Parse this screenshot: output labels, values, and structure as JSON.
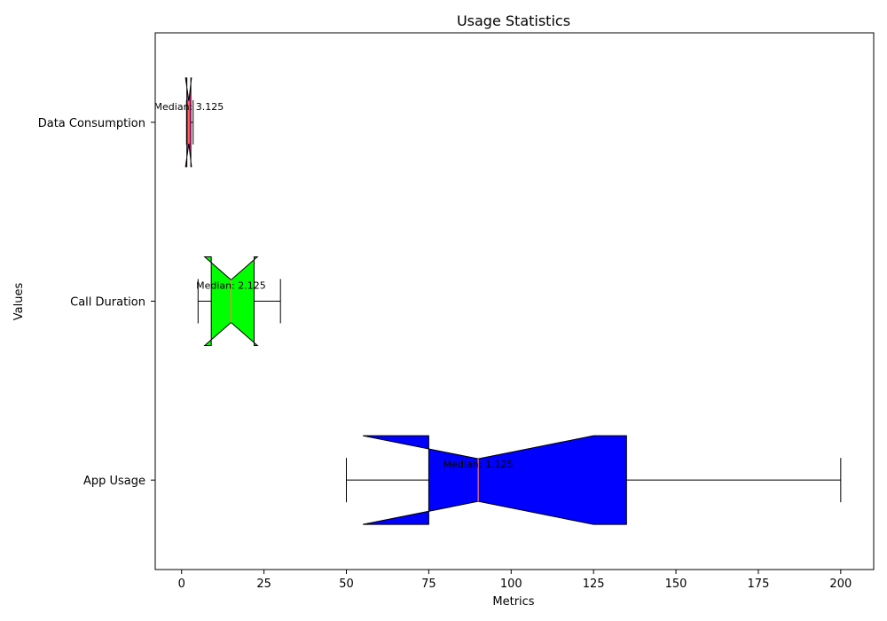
{
  "chart_data": {
    "type": "boxplot",
    "orientation": "horizontal",
    "notched": true,
    "title": "Usage Statistics",
    "xlabel": "Metrics",
    "ylabel": "Values",
    "xlim": [
      -8,
      210
    ],
    "xticks": [
      0,
      25,
      50,
      75,
      100,
      125,
      150,
      175,
      200
    ],
    "grid": false,
    "categories": [
      "App Usage",
      "Call Duration",
      "Data Consumption"
    ],
    "series": [
      {
        "category": "App Usage",
        "whisker_low": 50,
        "q1": 75,
        "median": 90,
        "q3": 135,
        "whisker_high": 200,
        "notch_low": 55,
        "notch_high": 125,
        "color": "#0000ff",
        "median_color": "#ff7f50",
        "median_label": "Median: 1.125"
      },
      {
        "category": "Call Duration",
        "whisker_low": 5,
        "q1": 9,
        "median": 15,
        "q3": 22,
        "whisker_high": 30,
        "notch_low": 7,
        "notch_high": 23,
        "color": "#00ff00",
        "median_color": "#ff7f50",
        "median_label": "Median: 2.125"
      },
      {
        "category": "Data Consumption",
        "whisker_low": 1.5,
        "q1": 1.6,
        "median": 2.2,
        "q3": 2.8,
        "whisker_high": 3.5,
        "notch_low": 1.2,
        "notch_high": 3.0,
        "color": "#ff1493",
        "median_color": "#ff7f50",
        "median_label": "Median: 3.125"
      }
    ]
  }
}
